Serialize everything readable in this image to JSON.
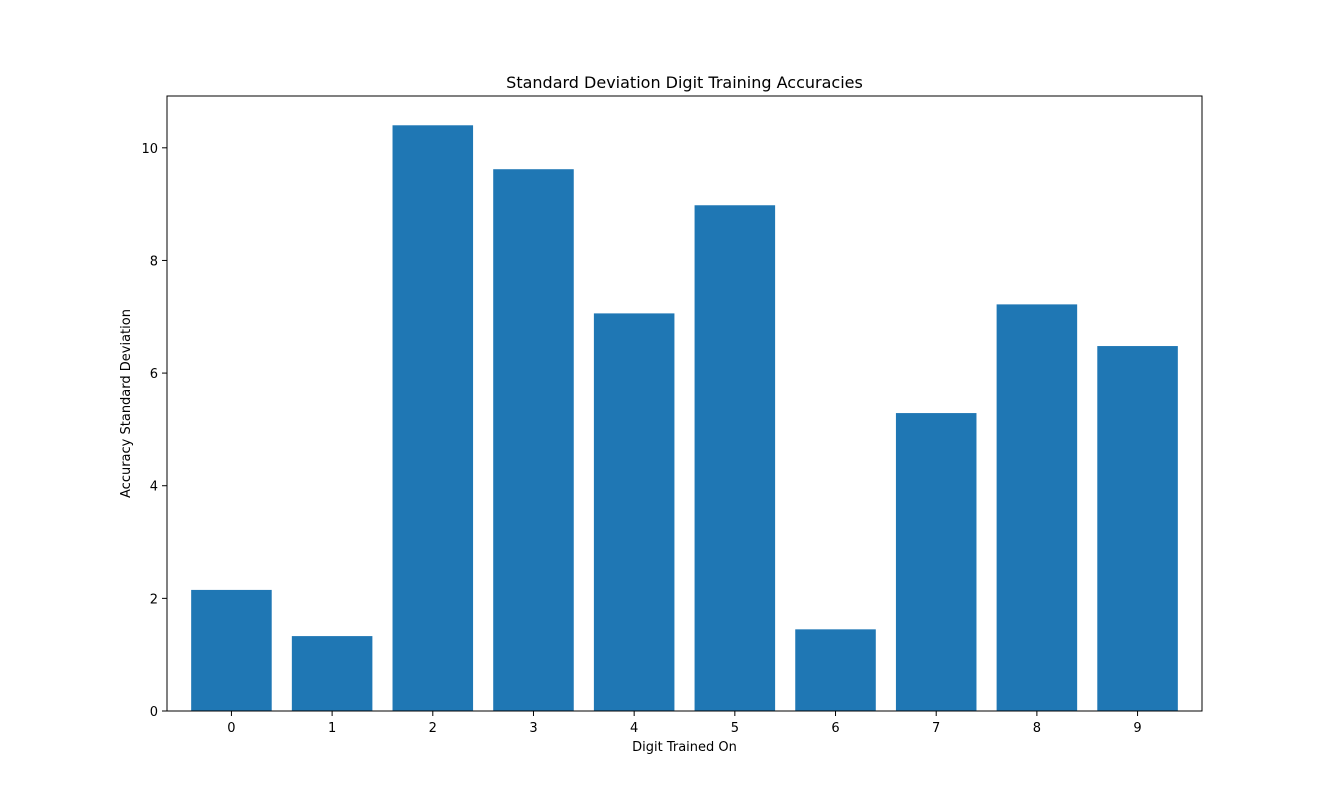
{
  "chart_data": {
    "type": "bar",
    "title": "Standard Deviation Digit Training Accuracies",
    "xlabel": "Digit Trained On",
    "ylabel": "Accuracy Standard Deviation",
    "categories": [
      "0",
      "1",
      "2",
      "3",
      "4",
      "5",
      "6",
      "7",
      "8",
      "9"
    ],
    "values": [
      2.15,
      1.33,
      10.4,
      9.62,
      7.06,
      8.98,
      1.45,
      5.29,
      7.22,
      6.48
    ],
    "ylim": [
      0,
      10.92
    ],
    "yticks": [
      "0",
      "2",
      "4",
      "6",
      "8",
      "10"
    ],
    "bar_color": "#1f77b4",
    "grid": false,
    "legend": "none"
  }
}
